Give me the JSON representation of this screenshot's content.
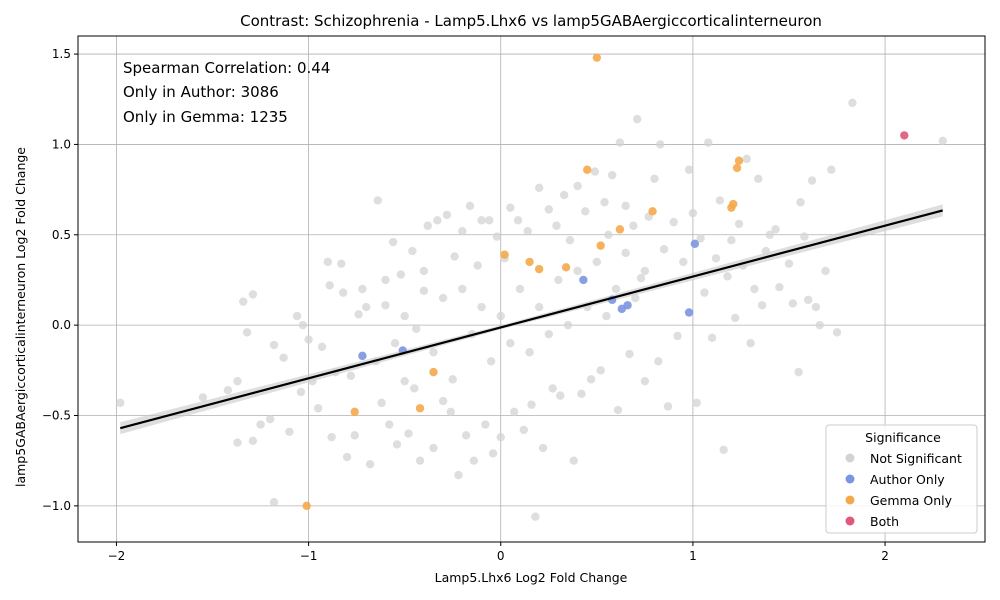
{
  "chart_data": {
    "type": "scatter",
    "title": "Contrast: Schizophrenia - Lamp5.Lhx6 vs lamp5GABAergiccorticalinterneuron",
    "xlabel": "Lamp5.Lhx6 Log2 Fold Change",
    "ylabel": "lamp5GABAergiccorticalinterneuron Log2 Fold Change",
    "xlim": [
      -2.2,
      2.52
    ],
    "ylim": [
      -1.2,
      1.6
    ],
    "x_ticks": [
      -2,
      -1,
      0,
      1,
      2
    ],
    "y_ticks": [
      -1.0,
      -0.5,
      0.0,
      0.5,
      1.0,
      1.5
    ],
    "x_tick_labels": [
      "−2",
      "−1",
      "0",
      "1",
      "2"
    ],
    "y_tick_labels": [
      "−1.0",
      "−0.5",
      "0.0",
      "0.5",
      "1.0",
      "1.5"
    ],
    "grid": true,
    "annotations": [
      "Spearman Correlation: 0.44",
      "Only in Author: 3086",
      "Only in Gemma: 1235"
    ],
    "legend": {
      "title": "Significance",
      "placement": "bottom-right",
      "entries": [
        {
          "label": "Not Significant",
          "color": "#d3d3d3"
        },
        {
          "label": "Author Only",
          "color": "#7b96e0"
        },
        {
          "label": "Gemma Only",
          "color": "#f5a84a"
        },
        {
          "label": "Both",
          "color": "#e0587a"
        }
      ]
    },
    "regression_line": {
      "x": [
        -1.98,
        2.3
      ],
      "y": [
        -0.57,
        0.635
      ],
      "color": "#000000"
    },
    "series": [
      {
        "name": "Not Significant",
        "color": "#d3d3d3",
        "points": [
          [
            -1.98,
            -0.43
          ],
          [
            -1.55,
            -0.4
          ],
          [
            -1.42,
            -0.36
          ],
          [
            -1.37,
            -0.31
          ],
          [
            -1.37,
            -0.65
          ],
          [
            -1.34,
            0.13
          ],
          [
            -1.32,
            -0.04
          ],
          [
            -1.29,
            0.17
          ],
          [
            -1.29,
            -0.64
          ],
          [
            -1.25,
            -0.55
          ],
          [
            -1.2,
            -0.52
          ],
          [
            -1.18,
            -0.98
          ],
          [
            -1.18,
            -0.11
          ],
          [
            -1.13,
            -0.18
          ],
          [
            -1.1,
            -0.59
          ],
          [
            -1.06,
            0.05
          ],
          [
            -1.04,
            -0.37
          ],
          [
            -1.03,
            0.0
          ],
          [
            -1.0,
            -0.08
          ],
          [
            -0.98,
            -0.31
          ],
          [
            -0.95,
            -0.46
          ],
          [
            -0.93,
            -0.12
          ],
          [
            -0.9,
            0.35
          ],
          [
            -0.89,
            0.22
          ],
          [
            -0.88,
            -0.62
          ],
          [
            -0.86,
            -0.26
          ],
          [
            -0.83,
            0.34
          ],
          [
            -0.82,
            0.18
          ],
          [
            -0.8,
            -0.73
          ],
          [
            -0.78,
            -0.28
          ],
          [
            -0.76,
            -0.61
          ],
          [
            -0.74,
            0.06
          ],
          [
            -0.72,
            0.2
          ],
          [
            -0.68,
            -0.77
          ],
          [
            -0.64,
            0.69
          ],
          [
            -0.62,
            -0.43
          ],
          [
            -0.6,
            0.11
          ],
          [
            -0.58,
            -0.55
          ],
          [
            -0.56,
            0.46
          ],
          [
            -0.54,
            -0.66
          ],
          [
            -0.52,
            0.28
          ],
          [
            -0.5,
            -0.31
          ],
          [
            -0.48,
            -0.6
          ],
          [
            -0.46,
            0.41
          ],
          [
            -0.44,
            -0.02
          ],
          [
            -0.42,
            -0.75
          ],
          [
            -0.4,
            0.19
          ],
          [
            -0.38,
            0.55
          ],
          [
            -0.35,
            -0.68
          ],
          [
            -0.33,
            0.58
          ],
          [
            -0.3,
            -0.42
          ],
          [
            -0.28,
            0.61
          ],
          [
            -0.26,
            -0.48
          ],
          [
            -0.24,
            0.38
          ],
          [
            -0.22,
            -0.83
          ],
          [
            -0.2,
            0.52
          ],
          [
            -0.18,
            -0.61
          ],
          [
            -0.16,
            0.66
          ],
          [
            -0.14,
            -0.75
          ],
          [
            -0.12,
            0.33
          ],
          [
            -0.1,
            0.58
          ],
          [
            -0.08,
            -0.55
          ],
          [
            -0.06,
            0.58
          ],
          [
            -0.04,
            -0.71
          ],
          [
            -0.02,
            0.49
          ],
          [
            0.0,
            -0.62
          ],
          [
            0.02,
            0.37
          ],
          [
            0.05,
            0.65
          ],
          [
            0.07,
            -0.48
          ],
          [
            0.09,
            0.58
          ],
          [
            0.12,
            -0.58
          ],
          [
            0.14,
            0.52
          ],
          [
            0.16,
            -0.44
          ],
          [
            0.18,
            -1.06
          ],
          [
            0.2,
            0.76
          ],
          [
            0.22,
            -0.68
          ],
          [
            0.25,
            0.64
          ],
          [
            0.27,
            -0.35
          ],
          [
            0.29,
            0.55
          ],
          [
            0.31,
            -0.39
          ],
          [
            0.33,
            0.72
          ],
          [
            0.36,
            0.47
          ],
          [
            0.38,
            -0.75
          ],
          [
            0.4,
            0.77
          ],
          [
            0.42,
            -0.38
          ],
          [
            0.44,
            0.63
          ],
          [
            0.47,
            -0.3
          ],
          [
            0.49,
            0.85
          ],
          [
            0.52,
            -0.25
          ],
          [
            0.54,
            0.68
          ],
          [
            0.56,
            0.5
          ],
          [
            0.58,
            0.83
          ],
          [
            0.61,
            -0.47
          ],
          [
            0.62,
            1.01
          ],
          [
            0.65,
            0.66
          ],
          [
            0.67,
            -0.16
          ],
          [
            0.69,
            0.55
          ],
          [
            0.71,
            1.14
          ],
          [
            0.73,
            0.26
          ],
          [
            0.75,
            -0.31
          ],
          [
            0.77,
            0.6
          ],
          [
            0.8,
            0.81
          ],
          [
            0.82,
            -0.2
          ],
          [
            0.83,
            1.0
          ],
          [
            0.85,
            0.42
          ],
          [
            0.87,
            -0.45
          ],
          [
            0.9,
            0.57
          ],
          [
            0.92,
            -0.06
          ],
          [
            0.95,
            0.35
          ],
          [
            0.98,
            0.86
          ],
          [
            1.0,
            0.62
          ],
          [
            1.02,
            -0.43
          ],
          [
            1.04,
            0.48
          ],
          [
            1.06,
            0.18
          ],
          [
            1.08,
            1.01
          ],
          [
            1.1,
            -0.07
          ],
          [
            1.12,
            0.37
          ],
          [
            1.14,
            0.69
          ],
          [
            1.16,
            -0.69
          ],
          [
            1.18,
            0.27
          ],
          [
            1.2,
            0.47
          ],
          [
            1.22,
            0.04
          ],
          [
            1.24,
            0.56
          ],
          [
            1.26,
            0.33
          ],
          [
            1.28,
            0.92
          ],
          [
            1.3,
            -0.1
          ],
          [
            1.32,
            0.2
          ],
          [
            1.34,
            0.81
          ],
          [
            1.36,
            0.11
          ],
          [
            1.38,
            0.41
          ],
          [
            1.4,
            0.5
          ],
          [
            1.43,
            0.53
          ],
          [
            1.45,
            0.21
          ],
          [
            1.5,
            0.34
          ],
          [
            1.52,
            0.12
          ],
          [
            1.55,
            -0.26
          ],
          [
            1.56,
            0.68
          ],
          [
            1.58,
            0.49
          ],
          [
            1.6,
            0.14
          ],
          [
            1.62,
            0.8
          ],
          [
            1.64,
            0.1
          ],
          [
            1.66,
            0.0
          ],
          [
            1.69,
            0.3
          ],
          [
            1.72,
            0.86
          ],
          [
            1.75,
            -0.04
          ],
          [
            1.83,
            1.23
          ],
          [
            2.3,
            1.02
          ],
          [
            -0.7,
            0.1
          ],
          [
            -0.65,
            -0.2
          ],
          [
            -0.6,
            0.25
          ],
          [
            -0.55,
            -0.1
          ],
          [
            -0.5,
            0.05
          ],
          [
            -0.45,
            -0.35
          ],
          [
            -0.4,
            0.3
          ],
          [
            -0.35,
            -0.15
          ],
          [
            -0.3,
            0.15
          ],
          [
            -0.25,
            -0.3
          ],
          [
            -0.2,
            0.2
          ],
          [
            -0.15,
            -0.05
          ],
          [
            -0.1,
            0.1
          ],
          [
            -0.05,
            -0.2
          ],
          [
            0.0,
            0.05
          ],
          [
            0.05,
            -0.1
          ],
          [
            0.1,
            0.2
          ],
          [
            0.15,
            -0.15
          ],
          [
            0.2,
            0.1
          ],
          [
            0.25,
            -0.05
          ],
          [
            0.3,
            0.25
          ],
          [
            0.35,
            0.0
          ],
          [
            0.4,
            0.3
          ],
          [
            0.45,
            0.1
          ],
          [
            0.5,
            0.35
          ],
          [
            0.55,
            0.05
          ],
          [
            0.6,
            0.2
          ],
          [
            0.65,
            0.4
          ],
          [
            0.7,
            0.15
          ],
          [
            0.75,
            0.3
          ]
        ]
      },
      {
        "name": "Author Only",
        "color": "#7b96e0",
        "points": [
          [
            1.01,
            0.45
          ],
          [
            0.98,
            0.07
          ],
          [
            0.43,
            0.25
          ],
          [
            0.58,
            0.14
          ],
          [
            0.66,
            0.11
          ],
          [
            0.63,
            0.09
          ],
          [
            -0.72,
            -0.17
          ],
          [
            -0.51,
            -0.14
          ]
        ]
      },
      {
        "name": "Gemma Only",
        "color": "#f5a84a",
        "points": [
          [
            0.5,
            1.48
          ],
          [
            0.45,
            0.86
          ],
          [
            1.24,
            0.91
          ],
          [
            1.23,
            0.87
          ],
          [
            1.21,
            0.67
          ],
          [
            1.2,
            0.65
          ],
          [
            0.79,
            0.63
          ],
          [
            0.62,
            0.53
          ],
          [
            0.52,
            0.44
          ],
          [
            0.02,
            0.39
          ],
          [
            0.15,
            0.35
          ],
          [
            0.2,
            0.31
          ],
          [
            0.34,
            0.32
          ],
          [
            -0.42,
            -0.46
          ],
          [
            -0.76,
            -0.48
          ],
          [
            -1.01,
            -1.0
          ],
          [
            -0.35,
            -0.26
          ]
        ]
      },
      {
        "name": "Both",
        "color": "#e0587a",
        "points": [
          [
            2.1,
            1.05
          ]
        ]
      }
    ]
  }
}
